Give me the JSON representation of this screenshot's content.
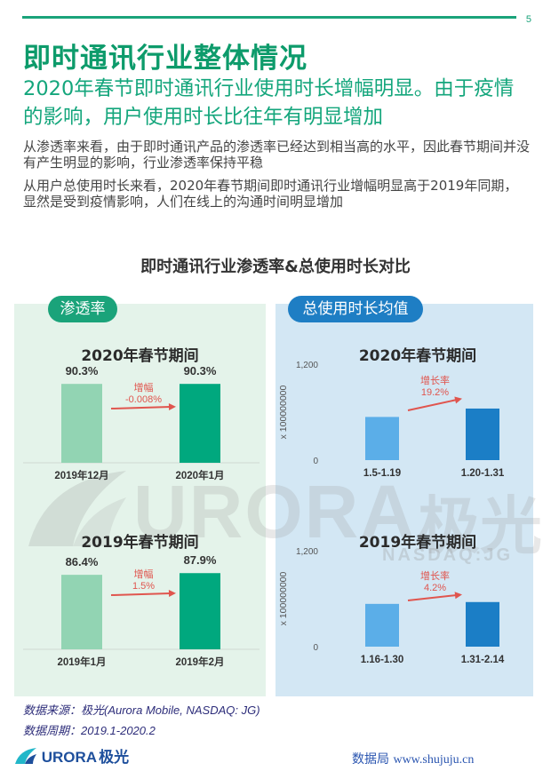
{
  "header": {
    "page_number": "5",
    "title": "即时通讯行业整体情况",
    "subtitle": "2020年春节即时通讯行业使用时长增幅明显。由于疫情的影响，用户使用时长比往年有明显增加",
    "paragraphs": [
      "从渗透率来看，由于即时通讯产品的渗透率已经达到相当高的水平，因此春节期间并没有产生明显的影响，行业渗透率保持平稳",
      "从用户总使用时长来看，2020年春节期间即时通讯行业增幅明显高于2019年同期，显然是受到疫情影响，人们在线上的沟通时间明显增加"
    ]
  },
  "chart_title": "即时通讯行业渗透率&总使用时长对比",
  "panels": {
    "left_label": "渗透率",
    "right_label": "总使用时长均值"
  },
  "colors": {
    "green_light": "#92d4b3",
    "green_dark": "#00a87e",
    "blue_light": "#5baee8",
    "blue_dark": "#1b7ec6",
    "annotation": "#e0554e"
  },
  "chart_data": [
    {
      "type": "bar",
      "title": "2020年春节期间",
      "metric": "渗透率",
      "categories": [
        "2019年12月",
        "2020年1月"
      ],
      "values": [
        90.3,
        90.3
      ],
      "value_labels": [
        "90.3%",
        "90.3%"
      ],
      "ylim": [
        0,
        100
      ],
      "annotation_label": "增幅",
      "annotation_value": "-0.008%"
    },
    {
      "type": "bar",
      "title": "2019年春节期间",
      "metric": "渗透率",
      "categories": [
        "2019年1月",
        "2019年2月"
      ],
      "values": [
        86.4,
        87.9
      ],
      "value_labels": [
        "86.4%",
        "87.9%"
      ],
      "ylim": [
        0,
        100
      ],
      "annotation_label": "增幅",
      "annotation_value": "1.5%"
    },
    {
      "type": "bar",
      "title": "2020年春节期间",
      "metric": "总使用时长均值",
      "categories": [
        "1.5-1.19",
        "1.20-1.31"
      ],
      "values": [
        540,
        645
      ],
      "ylabel": "x 100000000",
      "yticks": [
        "1,200",
        "0"
      ],
      "ylim": [
        0,
        1200
      ],
      "annotation_label": "增长率",
      "annotation_value": "19.2%"
    },
    {
      "type": "bar",
      "title": "2019年春节期间",
      "metric": "总使用时长均值",
      "categories": [
        "1.16-1.30",
        "1.31-2.14"
      ],
      "values": [
        535,
        558
      ],
      "ylabel": "x 100000000",
      "yticks": [
        "1,200",
        "0"
      ],
      "ylim": [
        0,
        1200
      ],
      "annotation_label": "增长率",
      "annotation_value": "4.2%"
    }
  ],
  "watermark": {
    "brand": "URORA",
    "brand_cn": "极光",
    "sub": "NASDAQ:JG"
  },
  "source": {
    "line1": "数据来源：极光(Aurora Mobile, NASDAQ: JG)",
    "line2": "数据周期：2019.1-2020.2"
  },
  "footer": {
    "logo": "URORA",
    "logo_cn": "极光",
    "site_cn": "数据局",
    "site_url": "www.shujuju.cn"
  }
}
